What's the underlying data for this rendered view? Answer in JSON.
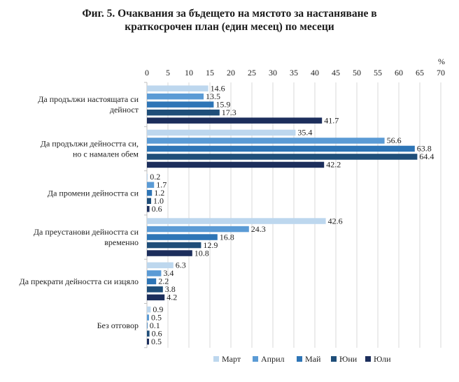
{
  "title_line1": "Фиг. 5. Очаквания за бъдещето на мястото за настаняване в",
  "title_line2": "краткосрочен план (един месец) по месеци",
  "chart_data": {
    "type": "bar",
    "orientation": "horizontal",
    "unit_label": "%",
    "xlim": [
      0,
      70
    ],
    "x_ticks": [
      0,
      5,
      10,
      15,
      20,
      25,
      30,
      35,
      40,
      45,
      50,
      55,
      60,
      65,
      70
    ],
    "grid": true,
    "legend_position": "bottom",
    "categories": [
      [
        "Да продължи настоящата си",
        "дейност"
      ],
      [
        "Да продължи дейността си,",
        "но с намален обем"
      ],
      [
        "Да промени дейността си"
      ],
      [
        "Да преустанови дейността си",
        "временно"
      ],
      [
        "Да прекрати дейността си изцяло"
      ],
      [
        "Без отговор"
      ]
    ],
    "series": [
      {
        "name": "Март",
        "color": "#bdd7ee",
        "values": [
          14.6,
          35.4,
          0.2,
          42.6,
          6.3,
          0.9
        ]
      },
      {
        "name": "Април",
        "color": "#5b9bd5",
        "values": [
          13.5,
          56.6,
          1.7,
          24.3,
          3.4,
          0.5
        ]
      },
      {
        "name": "Май",
        "color": "#2e75b6",
        "values": [
          15.9,
          63.8,
          1.2,
          16.8,
          2.2,
          0.1
        ]
      },
      {
        "name": "Юни",
        "color": "#1f4e79",
        "values": [
          17.3,
          64.4,
          1.0,
          12.9,
          3.8,
          0.6
        ]
      },
      {
        "name": "Юли",
        "color": "#1c2e5c",
        "values": [
          41.7,
          42.2,
          0.6,
          10.8,
          4.2,
          0.5
        ]
      }
    ]
  }
}
